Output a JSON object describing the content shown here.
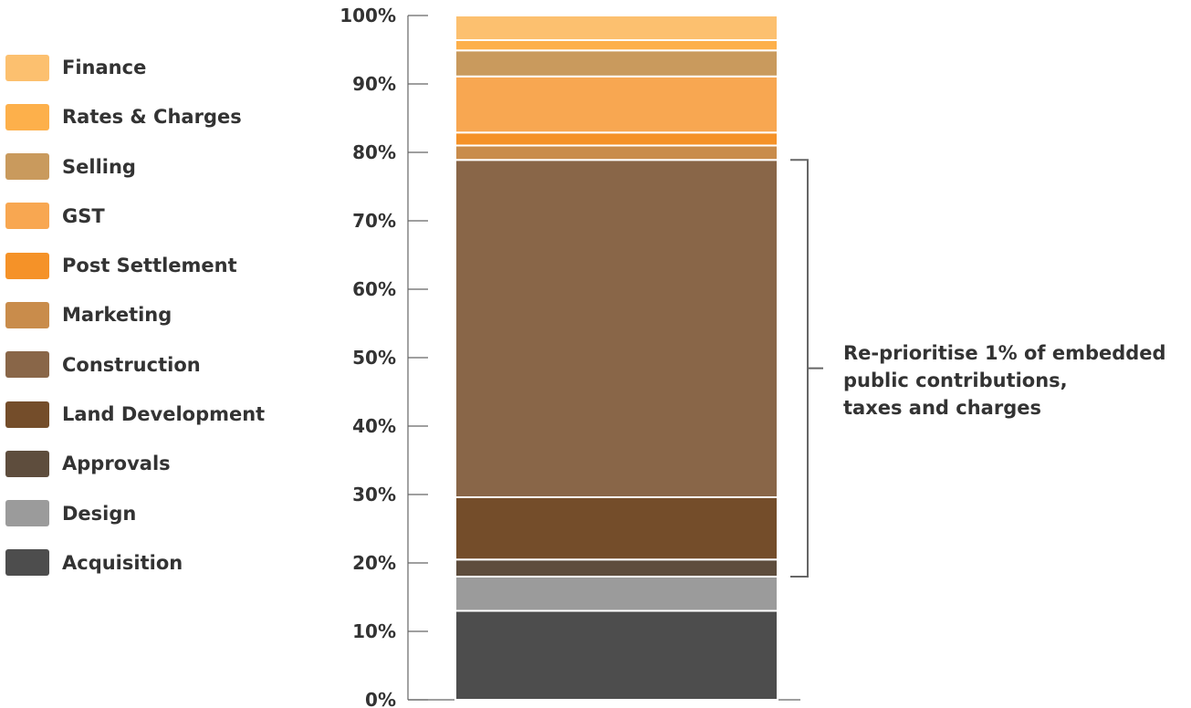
{
  "chart_data": {
    "type": "bar",
    "stacked": true,
    "categories": [
      ""
    ],
    "ylim": [
      0,
      100
    ],
    "yticks": [
      "0%",
      "10%",
      "20%",
      "30%",
      "40%",
      "50%",
      "60%",
      "70%",
      "80%",
      "90%",
      "100%"
    ],
    "legend_position": "left",
    "series": [
      {
        "name": "Acquisition",
        "values": [
          13.0
        ],
        "color": "#4d4d4d"
      },
      {
        "name": "Design",
        "values": [
          5.0
        ],
        "color": "#9b9b9b"
      },
      {
        "name": "Approvals",
        "values": [
          2.5
        ],
        "color": "#5e4d3d"
      },
      {
        "name": "Land Development",
        "values": [
          9.1
        ],
        "color": "#744d2a"
      },
      {
        "name": "Construction",
        "values": [
          49.3
        ],
        "color": "#896648"
      },
      {
        "name": "Marketing",
        "values": [
          2.1
        ],
        "color": "#c98c4b"
      },
      {
        "name": "Post Settlement",
        "values": [
          1.9
        ],
        "color": "#f59228"
      },
      {
        "name": "GST",
        "values": [
          8.2
        ],
        "color": "#f8a751"
      },
      {
        "name": "Selling",
        "values": [
          3.8
        ],
        "color": "#c99a5d"
      },
      {
        "name": "Rates & Charges",
        "values": [
          1.5
        ],
        "color": "#fdb04b"
      },
      {
        "name": "Finance",
        "values": [
          3.6
        ],
        "color": "#fcc06f"
      }
    ],
    "annotation": {
      "lines": [
        "Re-prioritise 1% of embedded",
        "public contributions,",
        "taxes and charges"
      ],
      "bracket_from": 18.0,
      "bracket_to": 78.9
    }
  }
}
